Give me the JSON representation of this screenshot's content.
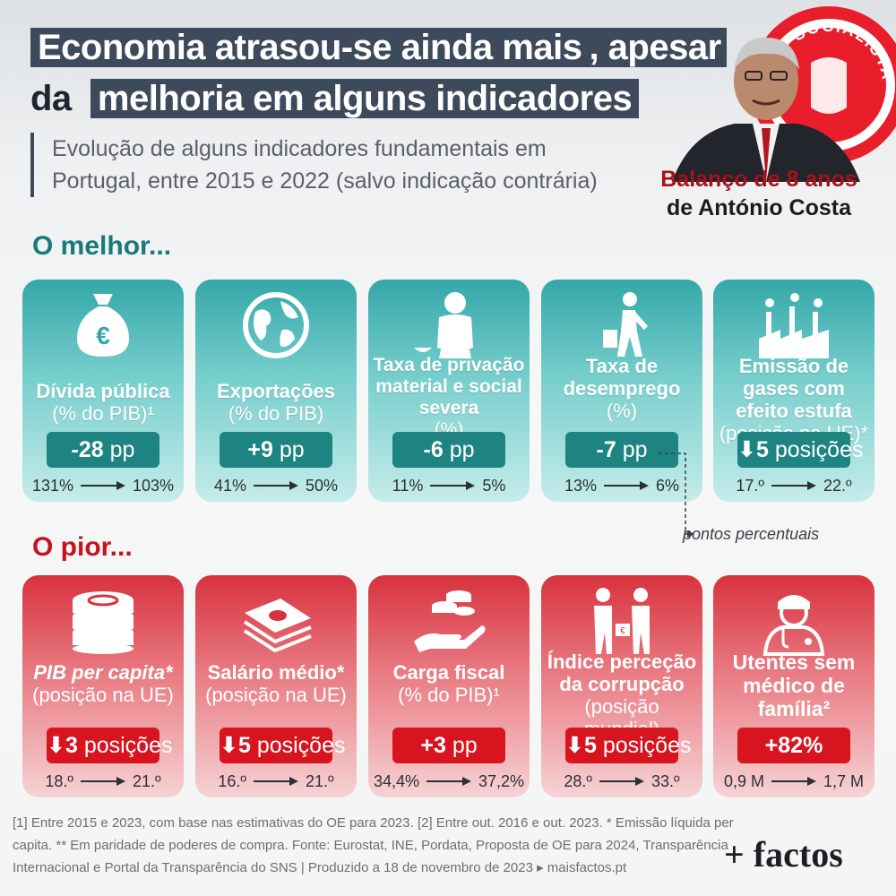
{
  "header": {
    "title_line1_highlight": "Economia atrasou-se ainda mais",
    "title_line1_rest": ", apesar",
    "title_line2_lead": "da",
    "title_line2_highlight": "melhoria em alguns indicadores",
    "subtitle_line1": "Evolução de alguns indicadores fundamentais em",
    "subtitle_line2": "Portugal, entre 2015 e 2022 (salvo indicação contrária)",
    "badge_line1": "Balanço de 8 anos",
    "badge_line2": "de António Costa",
    "seal_text": "SOCIALISTA"
  },
  "best": {
    "heading": "O melhor...",
    "cards": [
      {
        "icon": "money-bag-euro-icon",
        "label_main": "Dívida pública",
        "label_sub": "(% do PIB)¹",
        "change": "-28",
        "unit": "pp",
        "from": "131%",
        "to": "103%"
      },
      {
        "icon": "globe-icon",
        "label_main": "Exportações",
        "label_sub": "(% do PIB)",
        "change": "+9",
        "unit": "pp",
        "from": "41%",
        "to": "50%"
      },
      {
        "icon": "poverty-person-icon",
        "label_main": "Taxa de privação material e social severa",
        "label_sub": "(%)",
        "change": "-6",
        "unit": "pp",
        "from": "11%",
        "to": "5%"
      },
      {
        "icon": "worker-walking-icon",
        "label_main": "Taxa de desemprego",
        "label_sub": "(%)",
        "change": "-7",
        "unit": "pp",
        "from": "13%",
        "to": "6%"
      },
      {
        "icon": "factory-emissions-icon",
        "label_main": "Emissão de gases com efeito estufa",
        "label_sub": "(posição na UE)*",
        "change": "5",
        "unit": "posições",
        "from": "17.º",
        "to": "22.º"
      }
    ]
  },
  "percent_points_note": "pontos percentuais",
  "worst": {
    "heading": "O pior...",
    "cards": [
      {
        "icon": "coins-stack-icon",
        "label_main": "PIB per capita*",
        "label_sub": "(posição na UE)",
        "change": "3",
        "unit": "posições",
        "from": "18.º",
        "to": "21.º"
      },
      {
        "icon": "banknotes-icon",
        "label_main": "Salário médio*",
        "label_sub": "(posição na UE)",
        "change": "5",
        "unit": "posições",
        "from": "16.º",
        "to": "21.º"
      },
      {
        "icon": "hand-coins-icon",
        "label_main": "Carga fiscal",
        "label_sub": "(% do PIB)¹",
        "change": "+3",
        "unit": "pp",
        "from": "34,4%",
        "to": "37,2%"
      },
      {
        "icon": "bribe-exchange-icon",
        "label_main": "Índice perceção da corrupção",
        "label_sub": "(posição mundial)",
        "change": "5",
        "unit": "posições",
        "from": "28.º",
        "to": "33.º"
      },
      {
        "icon": "doctor-icon",
        "label_main": "Utentes sem médico de família²",
        "label_sub": "",
        "change": "+82%",
        "unit": "",
        "from": "0,9 M",
        "to": "1,7 M"
      }
    ]
  },
  "footer": {
    "line1": "[1] Entre 2015 e 2023, com base nas estimativas do OE para 2023. [2] Entre out. 2016 e out. 2023. * Emissão líquida per",
    "line2": "capita. ** Em paridade de poderes de compra. Fonte: Eurostat, INE, Pordata, Proposta de OE para 2024, Transparência",
    "line3": "Internacional e Portal da Transparência do SNS | Produzido a 18 de novembro de 2023 ▸ maisfactos.pt",
    "brand": "+ factos"
  },
  "colors": {
    "good": "#1d8482",
    "bad": "#d8141f",
    "title_bg": "#3d4a5c"
  }
}
